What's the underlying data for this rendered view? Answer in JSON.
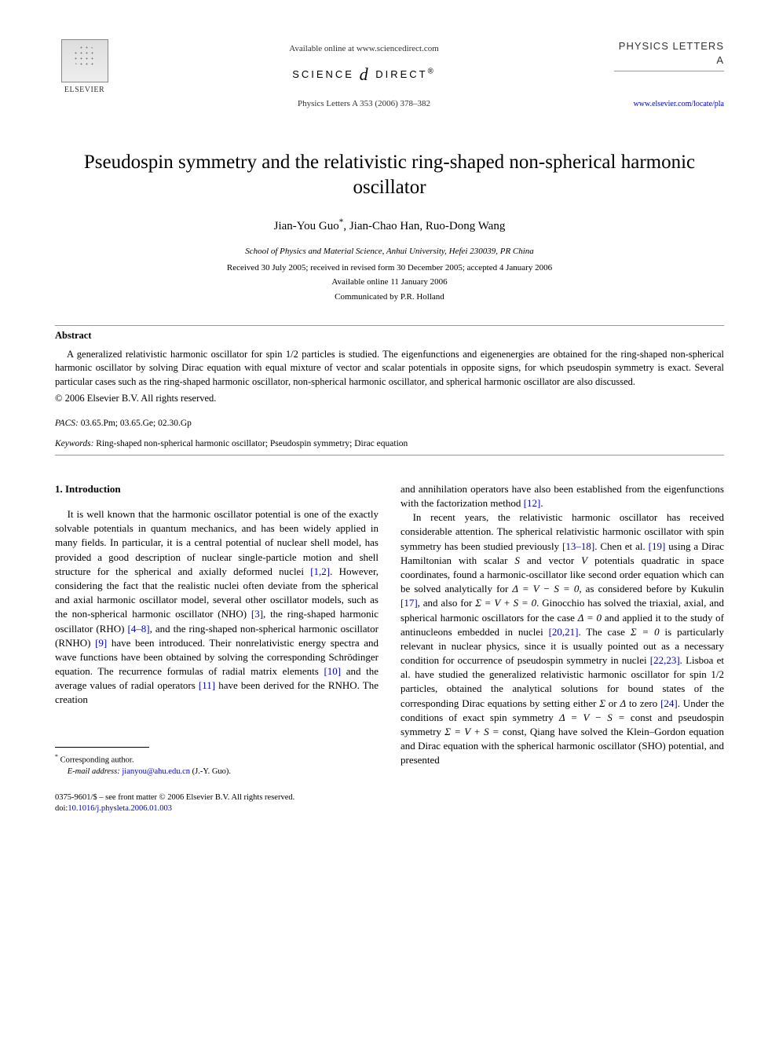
{
  "header": {
    "available_online": "Available online at www.sciencedirect.com",
    "science_direct_left": "SCIENCE",
    "science_direct_right": "DIRECT",
    "journal_ref": "Physics Letters A 353 (2006) 378–382",
    "elsevier": "ELSEVIER",
    "journal_name": "PHYSICS LETTERS A",
    "journal_url": "www.elsevier.com/locate/pla"
  },
  "article": {
    "title": "Pseudospin symmetry and the relativistic ring-shaped non-spherical harmonic oscillator",
    "authors_html": "Jian-You Guo *, Jian-Chao Han, Ruo-Dong Wang",
    "author1": "Jian-You Guo",
    "author_star": "*",
    "author_sep1": ", ",
    "author2": "Jian-Chao Han, Ruo-Dong Wang",
    "affiliation": "School of Physics and Material Science, Anhui University, Hefei 230039, PR China",
    "received": "Received 30 July 2005; received in revised form 30 December 2005; accepted 4 January 2006",
    "available": "Available online 11 January 2006",
    "communicated": "Communicated by P.R. Holland"
  },
  "abstract": {
    "heading": "Abstract",
    "text": "A generalized relativistic harmonic oscillator for spin 1/2 particles is studied. The eigenfunctions and eigenenergies are obtained for the ring-shaped non-spherical harmonic oscillator by solving Dirac equation with equal mixture of vector and scalar potentials in opposite signs, for which pseudospin symmetry is exact. Several particular cases such as the ring-shaped harmonic oscillator, non-spherical harmonic oscillator, and spherical harmonic oscillator are also discussed.",
    "copyright": "© 2006 Elsevier B.V. All rights reserved."
  },
  "pacs": {
    "label": "PACS:",
    "codes": " 03.65.Pm; 03.65.Ge; 02.30.Gp"
  },
  "keywords": {
    "label": "Keywords:",
    "text": " Ring-shaped non-spherical harmonic oscillator; Pseudospin symmetry; Dirac equation"
  },
  "section1": {
    "heading": "1. Introduction",
    "col1_p1a": "It is well known that the harmonic oscillator potential is one of the exactly solvable potentials in quantum mechanics, and has been widely applied in many fields. In particular, it is a central potential of nuclear shell model, has provided a good description of nuclear single-particle motion and shell structure for the spherical and axially deformed nuclei ",
    "ref_1_2": "[1,2]",
    "col1_p1b": ". However, considering the fact that the realistic nuclei often deviate from the spherical and axial harmonic oscillator model, several other oscillator models, such as the non-spherical harmonic oscillator (NHO) ",
    "ref_3": "[3]",
    "col1_p1c": ", the ring-shaped harmonic oscillator (RHO) ",
    "ref_4_8": "[4–8]",
    "col1_p1d": ", and the ring-shaped non-spherical harmonic oscillator (RNHO) ",
    "ref_9": "[9]",
    "col1_p1e": " have been introduced. Their nonrelativistic energy spectra and wave functions have been obtained by solving the corresponding Schrödinger equation. The recurrence formulas of radial matrix elements ",
    "ref_10": "[10]",
    "col1_p1f": " and the average values of radial operators ",
    "ref_11": "[11]",
    "col1_p1g": " have been derived for the RNHO. The creation",
    "col2_p1a": "and annihilation operators have also been established from the eigenfunctions with the factorization method ",
    "ref_12": "[12]",
    "col2_p1b": ".",
    "col2_p2a": "In recent years, the relativistic harmonic oscillator has received considerable attention. The spherical relativistic harmonic oscillator with spin symmetry has been studied previously ",
    "ref_13_18": "[13–18]",
    "col2_p2b": ". Chen et al. ",
    "ref_19": "[19]",
    "col2_p2c": " using a Dirac Hamiltonian with scalar ",
    "var_S": "S",
    "col2_p2d": " and vector ",
    "var_V": "V",
    "col2_p2e": " potentials quadratic in space coordinates, found a harmonic-oscillator like second order equation which can be solved analytically for ",
    "eq_delta": "Δ = V − S = 0",
    "col2_p2f": ", as considered before by Kukulin ",
    "ref_17": "[17]",
    "col2_p2g": ", and also for ",
    "eq_sigma": "Σ = V + S = 0",
    "col2_p2h": ". Ginocchio has solved the triaxial, axial, and spherical harmonic oscillators for the case ",
    "eq_delta0": "Δ = 0",
    "col2_p2i": " and applied it to the study of antinucleons embedded in nuclei ",
    "ref_20_21": "[20,21]",
    "col2_p2j": ". The case ",
    "eq_sigma0": "Σ = 0",
    "col2_p2k": " is particularly relevant in nuclear physics, since it is usually pointed out as a necessary condition for occurrence of pseudospin symmetry in nuclei ",
    "ref_22_23": "[22,23]",
    "col2_p2l": ". Lisboa et al. have studied the generalized relativistic harmonic oscillator for spin 1/2 particles, obtained the analytical solutions for bound states of the corresponding Dirac equations by setting either ",
    "var_Sigma": "Σ",
    "col2_p2m": " or ",
    "var_Delta": "Δ",
    "col2_p2n": " to zero ",
    "ref_24": "[24]",
    "col2_p2o": ". Under the conditions of exact spin symmetry ",
    "eq_spin": "Δ = V − S = ",
    "const1": "const",
    "col2_p2p": " and pseudospin symmetry ",
    "eq_pseudo": "Σ = V + S = ",
    "const2": "const",
    "col2_p2q": ", Qiang have solved the Klein–Gordon equation and Dirac equation with the spherical harmonic oscillator (SHO) potential, and presented"
  },
  "footnote": {
    "corresponding": "Corresponding author.",
    "email_label": "E-mail address:",
    "email": "jianyou@ahu.edu.cn",
    "email_author": " (J.-Y. Guo)."
  },
  "footer": {
    "front_matter": "0375-9601/$ – see front matter © 2006 Elsevier B.V. All rights reserved.",
    "doi_label": "doi:",
    "doi": "10.1016/j.physleta.2006.01.003"
  }
}
